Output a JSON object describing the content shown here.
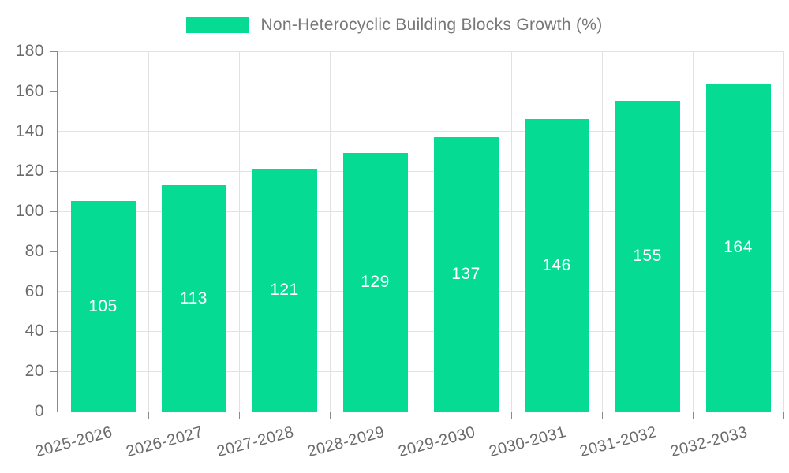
{
  "legend": {
    "label": "Non-Heterocyclic Building Blocks Growth (%)"
  },
  "chart_data": {
    "type": "bar",
    "title": "",
    "xlabel": "",
    "ylabel": "",
    "categories": [
      "2025-2026",
      "2026-2027",
      "2027-2028",
      "2028-2029",
      "2029-2030",
      "2030-2031",
      "2031-2032",
      "2032-2033"
    ],
    "series": [
      {
        "name": "Non-Heterocyclic Building Blocks Growth (%)",
        "values": [
          105,
          113,
          121,
          129,
          137,
          146,
          155,
          164
        ]
      }
    ],
    "ylim": [
      0,
      180
    ],
    "ytick_step": 20,
    "yticks": [
      0,
      20,
      40,
      60,
      80,
      100,
      120,
      140,
      160,
      180
    ],
    "grid": true,
    "legend_position": "top",
    "x_label_rotation_deg": -15,
    "colors": {
      "bar": "#05DB93",
      "bar_value_label": "#FFFFFF",
      "axis_line": "#8A8A8A",
      "grid_line": "#E2E2E2",
      "tick_label": "#6B6B6B",
      "legend_text": "#777777"
    }
  }
}
